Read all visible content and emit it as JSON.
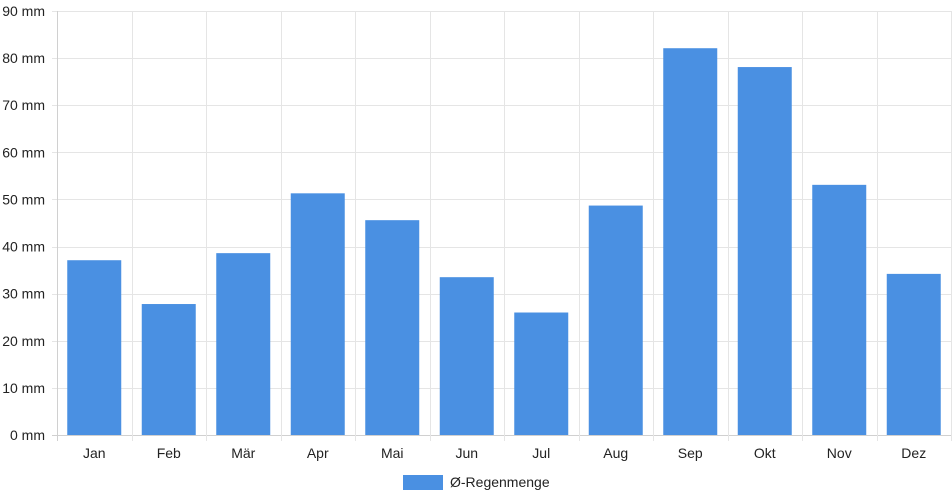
{
  "chart_data": {
    "type": "bar",
    "categories": [
      "Jan",
      "Feb",
      "Mär",
      "Apr",
      "Mai",
      "Jun",
      "Jul",
      "Aug",
      "Sep",
      "Okt",
      "Nov",
      "Dez"
    ],
    "series": [
      {
        "name": "Ø-Regenmenge",
        "values": [
          37.1,
          27.8,
          38.6,
          51.3,
          45.6,
          33.5,
          26.0,
          48.7,
          82.1,
          78.1,
          53.1,
          34.2
        ],
        "color": "#4a90e2"
      }
    ],
    "ylim": [
      0,
      90
    ],
    "y_ticks": [
      "0 mm",
      "10 mm",
      "20 mm",
      "30 mm",
      "40 mm",
      "50 mm",
      "60 mm",
      "70 mm",
      "80 mm",
      "90 mm"
    ],
    "y_tick_values": [
      0,
      10,
      20,
      30,
      40,
      50,
      60,
      70,
      80,
      90
    ],
    "grid": true,
    "legend_position": "bottom-center",
    "gridline_color": "#e5e5e5",
    "axis_color": "#d0d0d0"
  }
}
